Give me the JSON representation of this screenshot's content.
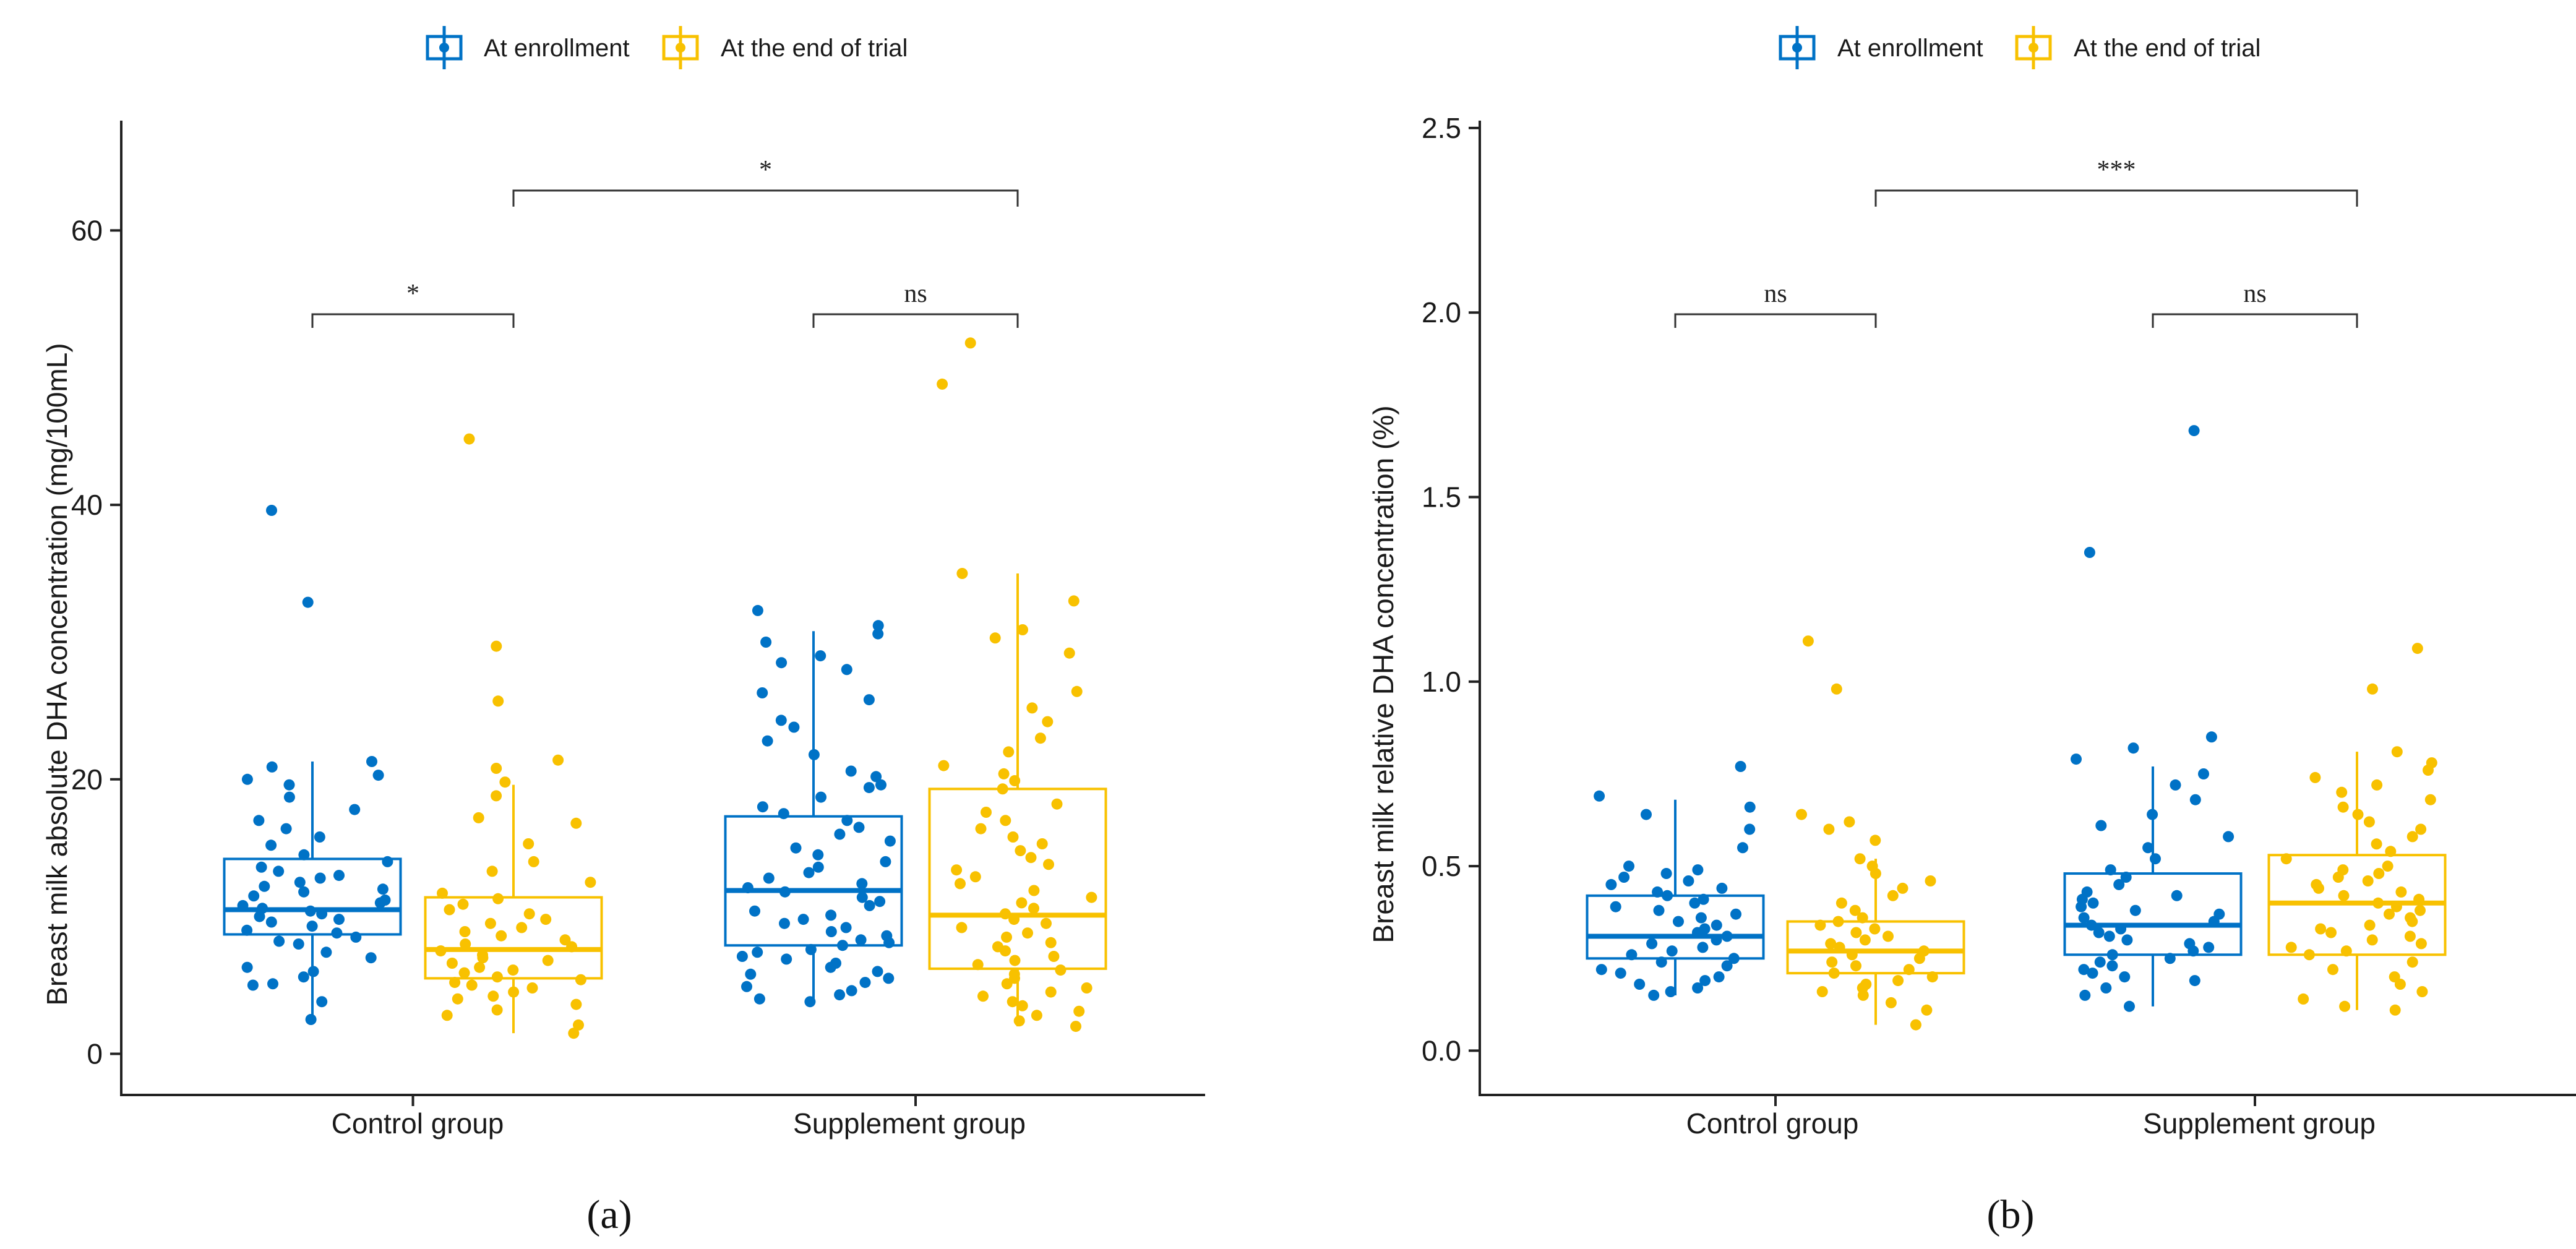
{
  "colors": {
    "enrollment": "#0072c6",
    "end_of_trial": "#f8c100",
    "axis": "#222222",
    "bracket": "#333333"
  },
  "legend": [
    {
      "label": "At enrollment",
      "color": "#0072c6"
    },
    {
      "label": "At the end of trial",
      "color": "#f8c100"
    }
  ],
  "panel_labels": [
    "(a)",
    "(b)"
  ],
  "chart_data": [
    {
      "type": "box",
      "ylabel": "Breast milk absolute DHA concentration (mg/100mL)",
      "xlabel": "",
      "categories": [
        "Control group",
        "Supplement group"
      ],
      "ylim": [
        -3,
        68
      ],
      "yticks": [
        0,
        20,
        40,
        60
      ],
      "series": [
        {
          "name": "At enrollment",
          "boxes": [
            {
              "min": 2.5,
              "q1": 8.7,
              "median": 10.5,
              "q3": 14.2,
              "max": 21.3
            },
            {
              "min": 4.0,
              "q1": 7.9,
              "median": 11.9,
              "q3": 17.3,
              "max": 30.8
            }
          ]
        },
        {
          "name": "At the end of trial",
          "boxes": [
            {
              "min": 1.5,
              "q1": 5.5,
              "median": 7.6,
              "q3": 11.4,
              "max": 19.6
            },
            {
              "min": 2.0,
              "q1": 6.2,
              "median": 10.1,
              "q3": 19.3,
              "max": 35.0
            }
          ]
        }
      ],
      "points": [
        [
          [
            2.5,
            3.8,
            5.0,
            5.1,
            5.6,
            6.0,
            6.3,
            7.0,
            7.4,
            8.0,
            8.2,
            8.5,
            8.8,
            9.0,
            9.3,
            9.6,
            9.8,
            10.0,
            10.2,
            10.4,
            10.6,
            10.8,
            11.0,
            11.2,
            11.5,
            11.8,
            12.0,
            12.2,
            12.5,
            12.8,
            13.0,
            13.3,
            13.6,
            14.0,
            14.5,
            15.2,
            15.8,
            16.4,
            17.0,
            17.8,
            18.7,
            19.6,
            20.0,
            20.3,
            20.9,
            21.3,
            32.9,
            39.6
          ],
          [
            1.5,
            2.1,
            2.8,
            3.2,
            3.6,
            4.0,
            4.2,
            4.5,
            4.8,
            5.0,
            5.2,
            5.4,
            5.6,
            5.9,
            6.1,
            6.3,
            6.6,
            6.8,
            7.0,
            7.2,
            7.5,
            7.8,
            8.0,
            8.3,
            8.6,
            8.9,
            9.2,
            9.5,
            9.8,
            10.2,
            10.5,
            10.9,
            11.3,
            11.7,
            12.5,
            13.3,
            14.0,
            15.3,
            16.8,
            17.2,
            18.8,
            19.8,
            20.8,
            21.4,
            25.7,
            29.7,
            44.8
          ]
        ],
        [
          [
            3.8,
            4.0,
            4.3,
            4.6,
            4.9,
            5.2,
            5.5,
            5.8,
            6.0,
            6.3,
            6.6,
            6.9,
            7.1,
            7.4,
            7.6,
            7.9,
            8.1,
            8.3,
            8.6,
            8.9,
            9.2,
            9.5,
            9.8,
            10.1,
            10.4,
            10.8,
            11.1,
            11.4,
            11.8,
            12.1,
            12.4,
            12.8,
            13.2,
            13.6,
            14.0,
            14.5,
            15.0,
            15.5,
            16.0,
            16.5,
            17.0,
            17.5,
            18.0,
            18.7,
            19.4,
            19.6,
            20.2,
            20.6,
            21.8,
            22.8,
            23.8,
            24.3,
            25.8,
            26.3,
            28.0,
            28.5,
            29.0,
            30.0,
            30.6,
            31.2,
            32.3
          ],
          [
            2.0,
            2.4,
            2.8,
            3.1,
            3.5,
            3.8,
            4.2,
            4.5,
            4.8,
            5.1,
            5.5,
            5.8,
            6.1,
            6.5,
            6.8,
            7.1,
            7.5,
            7.8,
            8.1,
            8.5,
            8.8,
            9.2,
            9.5,
            9.8,
            10.2,
            10.6,
            11.0,
            11.4,
            11.9,
            12.4,
            12.9,
            13.4,
            13.8,
            14.3,
            14.8,
            15.3,
            15.8,
            16.4,
            17.0,
            17.6,
            18.2,
            19.3,
            19.9,
            20.4,
            21.0,
            22.0,
            23.0,
            24.2,
            25.2,
            26.4,
            29.2,
            30.3,
            30.9,
            33.0,
            35.0,
            48.8,
            51.8
          ]
        ]
      ],
      "comparisons": [
        {
          "label": "*",
          "from": "Control group / At enrollment",
          "to": "Control group / At the end of trial"
        },
        {
          "label": "ns",
          "from": "Supplement group / At enrollment",
          "to": "Supplement group / At the end of trial"
        },
        {
          "label": "*",
          "from": "Control group / At the end of trial",
          "to": "Supplement group / At the end of trial"
        }
      ]
    },
    {
      "type": "box",
      "ylabel": "Breast milk relative DHA concentration (%)",
      "xlabel": "",
      "categories": [
        "Control group",
        "Supplement group"
      ],
      "ylim": [
        -0.12,
        2.52
      ],
      "yticks": [
        "0.0",
        "0.5",
        "1.0",
        "1.5",
        "2.0",
        "2.5"
      ],
      "series": [
        {
          "name": "At enrollment",
          "boxes": [
            {
              "min": 0.15,
              "q1": 0.25,
              "median": 0.31,
              "q3": 0.42,
              "max": 0.68
            },
            {
              "min": 0.12,
              "q1": 0.26,
              "median": 0.34,
              "q3": 0.48,
              "max": 0.77
            }
          ]
        },
        {
          "name": "At the end of trial",
          "boxes": [
            {
              "min": 0.07,
              "q1": 0.21,
              "median": 0.27,
              "q3": 0.35,
              "max": 0.52
            },
            {
              "min": 0.11,
              "q1": 0.26,
              "median": 0.4,
              "q3": 0.53,
              "max": 0.81
            }
          ]
        }
      ],
      "points": [
        [
          [
            0.15,
            0.16,
            0.17,
            0.18,
            0.19,
            0.2,
            0.21,
            0.22,
            0.23,
            0.24,
            0.25,
            0.26,
            0.27,
            0.28,
            0.29,
            0.3,
            0.31,
            0.32,
            0.33,
            0.34,
            0.35,
            0.36,
            0.37,
            0.38,
            0.39,
            0.4,
            0.41,
            0.42,
            0.43,
            0.44,
            0.45,
            0.46,
            0.47,
            0.48,
            0.49,
            0.5,
            0.55,
            0.6,
            0.64,
            0.66,
            0.69,
            0.77
          ],
          [
            0.07,
            0.11,
            0.13,
            0.15,
            0.16,
            0.17,
            0.18,
            0.19,
            0.2,
            0.21,
            0.22,
            0.23,
            0.24,
            0.25,
            0.26,
            0.27,
            0.28,
            0.29,
            0.3,
            0.31,
            0.32,
            0.33,
            0.34,
            0.35,
            0.36,
            0.38,
            0.4,
            0.42,
            0.44,
            0.46,
            0.48,
            0.5,
            0.52,
            0.57,
            0.6,
            0.62,
            0.64,
            0.98,
            1.11
          ]
        ],
        [
          [
            0.12,
            0.15,
            0.17,
            0.19,
            0.2,
            0.21,
            0.22,
            0.23,
            0.24,
            0.25,
            0.26,
            0.27,
            0.28,
            0.29,
            0.3,
            0.31,
            0.32,
            0.33,
            0.34,
            0.35,
            0.36,
            0.37,
            0.38,
            0.39,
            0.4,
            0.41,
            0.42,
            0.43,
            0.45,
            0.47,
            0.49,
            0.52,
            0.55,
            0.58,
            0.61,
            0.64,
            0.68,
            0.72,
            0.75,
            0.79,
            0.82,
            0.85,
            1.35,
            1.68
          ],
          [
            0.11,
            0.12,
            0.14,
            0.16,
            0.18,
            0.2,
            0.22,
            0.24,
            0.26,
            0.27,
            0.28,
            0.29,
            0.3,
            0.31,
            0.32,
            0.33,
            0.34,
            0.35,
            0.36,
            0.37,
            0.38,
            0.39,
            0.4,
            0.41,
            0.42,
            0.43,
            0.44,
            0.45,
            0.46,
            0.47,
            0.48,
            0.49,
            0.5,
            0.52,
            0.54,
            0.56,
            0.58,
            0.6,
            0.62,
            0.64,
            0.66,
            0.68,
            0.7,
            0.72,
            0.74,
            0.76,
            0.78,
            0.81,
            0.98,
            1.09
          ]
        ]
      ],
      "comparisons": [
        {
          "label": "ns",
          "from": "Control group / At enrollment",
          "to": "Control group / At the end of trial"
        },
        {
          "label": "ns",
          "from": "Supplement group / At enrollment",
          "to": "Supplement group / At the end of trial"
        },
        {
          "label": "***",
          "from": "Control group / At the end of trial",
          "to": "Supplement group / At the end of trial"
        }
      ]
    }
  ]
}
